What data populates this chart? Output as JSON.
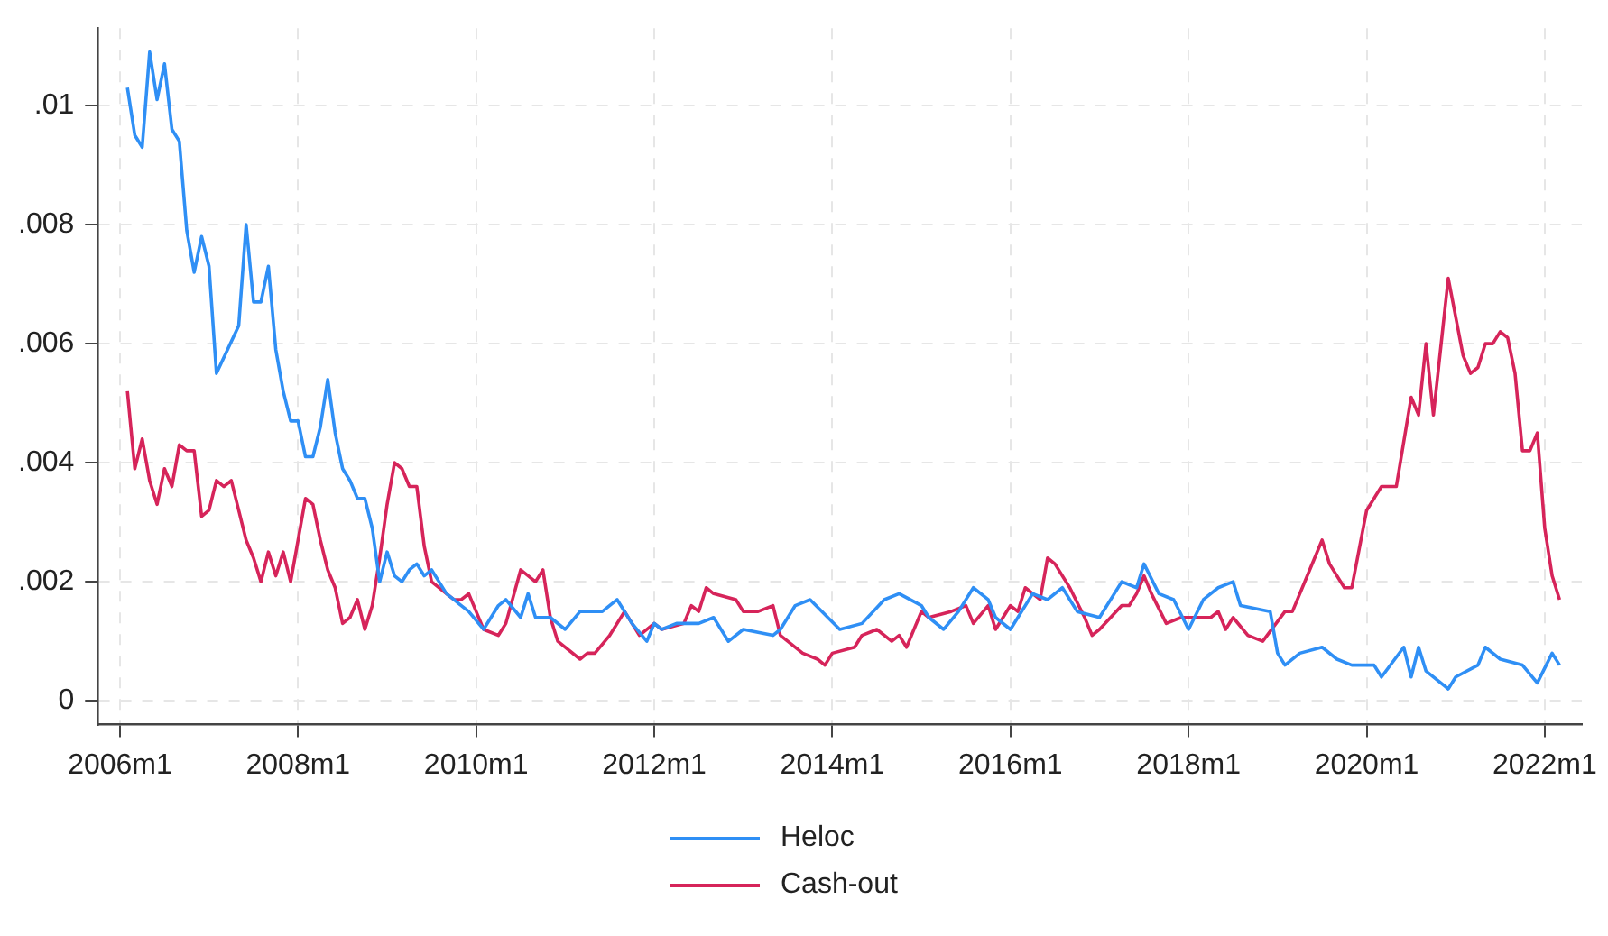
{
  "chart_data": {
    "type": "line",
    "xlim": [
      "2005-10",
      "2022-06"
    ],
    "ylim": [
      -0.0004,
      0.0113
    ],
    "xticks": [
      {
        "value": "2006-01",
        "label": "2006m1"
      },
      {
        "value": "2008-01",
        "label": "2008m1"
      },
      {
        "value": "2010-01",
        "label": "2010m1"
      },
      {
        "value": "2012-01",
        "label": "2012m1"
      },
      {
        "value": "2014-01",
        "label": "2014m1"
      },
      {
        "value": "2016-01",
        "label": "2016m1"
      },
      {
        "value": "2018-01",
        "label": "2018m1"
      },
      {
        "value": "2020-01",
        "label": "2020m1"
      },
      {
        "value": "2022-01",
        "label": "2022m1"
      }
    ],
    "yticks": [
      {
        "value": 0,
        "label": "0"
      },
      {
        "value": 0.002,
        "label": ".002"
      },
      {
        "value": 0.004,
        "label": ".004"
      },
      {
        "value": 0.006,
        "label": ".006"
      },
      {
        "value": 0.008,
        "label": ".008"
      },
      {
        "value": 0.01,
        "label": ".01"
      }
    ],
    "grid": true,
    "legend": "bottom",
    "marker": "none",
    "line_style": "solid",
    "series": [
      {
        "name": "Heloc",
        "color": "#2f8ff5",
        "x": [
          "2006-02",
          "2006-03",
          "2006-04",
          "2006-05",
          "2006-06",
          "2006-07",
          "2006-08",
          "2006-09",
          "2006-10",
          "2006-11",
          "2006-12",
          "2007-01",
          "2007-02",
          "2007-05",
          "2007-06",
          "2007-07",
          "2007-08",
          "2007-09",
          "2007-10",
          "2007-11",
          "2007-12",
          "2008-01",
          "2008-02",
          "2008-03",
          "2008-04",
          "2008-05",
          "2008-06",
          "2008-07",
          "2008-08",
          "2008-09",
          "2008-10",
          "2008-11",
          "2008-12",
          "2009-01",
          "2009-02",
          "2009-03",
          "2009-04",
          "2009-05",
          "2009-06",
          "2009-07",
          "2009-08",
          "2009-09",
          "2009-10",
          "2009-11",
          "2009-12",
          "2010-02",
          "2010-04",
          "2010-05",
          "2010-07",
          "2010-08",
          "2010-09",
          "2010-11",
          "2011-01",
          "2011-03",
          "2011-06",
          "2011-08",
          "2011-10",
          "2011-12",
          "2012-01",
          "2012-02",
          "2012-04",
          "2012-07",
          "2012-09",
          "2012-11",
          "2013-01",
          "2013-05",
          "2013-06",
          "2013-08",
          "2013-10",
          "2014-02",
          "2014-05",
          "2014-08",
          "2014-10",
          "2015-01",
          "2015-02",
          "2015-04",
          "2015-06",
          "2015-08",
          "2015-10",
          "2015-11",
          "2016-01",
          "2016-04",
          "2016-06",
          "2016-08",
          "2016-10",
          "2017-01",
          "2017-04",
          "2017-06",
          "2017-07",
          "2017-09",
          "2017-11",
          "2018-01",
          "2018-03",
          "2018-05",
          "2018-07",
          "2018-08",
          "2018-12",
          "2019-01",
          "2019-02",
          "2019-04",
          "2019-07",
          "2019-09",
          "2019-11",
          "2020-02",
          "2020-03",
          "2020-06",
          "2020-07",
          "2020-08",
          "2020-09",
          "2020-12",
          "2021-01",
          "2021-04",
          "2021-05",
          "2021-07",
          "2021-10",
          "2021-12",
          "2022-02",
          "2022-03"
        ],
        "values": [
          0.0103,
          0.0095,
          0.0093,
          0.0109,
          0.0101,
          0.0107,
          0.0096,
          0.0094,
          0.0079,
          0.0072,
          0.0078,
          0.0073,
          0.0055,
          0.0063,
          0.008,
          0.0067,
          0.0067,
          0.0073,
          0.0059,
          0.0052,
          0.0047,
          0.0047,
          0.0041,
          0.0041,
          0.0046,
          0.0054,
          0.0045,
          0.0039,
          0.0037,
          0.0034,
          0.0034,
          0.0029,
          0.002,
          0.0025,
          0.0021,
          0.002,
          0.0022,
          0.0023,
          0.0021,
          0.0022,
          0.002,
          0.0018,
          0.0017,
          0.0016,
          0.0015,
          0.0012,
          0.0016,
          0.0017,
          0.0014,
          0.0018,
          0.0014,
          0.0014,
          0.0012,
          0.0015,
          0.0015,
          0.0017,
          0.0013,
          0.001,
          0.0013,
          0.0012,
          0.0013,
          0.0013,
          0.0014,
          0.001,
          0.0012,
          0.0011,
          0.0012,
          0.0016,
          0.0017,
          0.0012,
          0.0013,
          0.0017,
          0.0018,
          0.0016,
          0.0014,
          0.0012,
          0.0015,
          0.0019,
          0.0017,
          0.0014,
          0.0012,
          0.0018,
          0.0017,
          0.0019,
          0.0015,
          0.0014,
          0.002,
          0.0019,
          0.0023,
          0.0018,
          0.0017,
          0.0012,
          0.0017,
          0.0019,
          0.002,
          0.0016,
          0.0015,
          0.0008,
          0.0006,
          0.0008,
          0.0009,
          0.0007,
          0.0006,
          0.0006,
          0.0004,
          0.0009,
          0.0004,
          0.0009,
          0.0005,
          0.0002,
          0.0004,
          0.0006,
          0.0009,
          0.0007,
          0.0006,
          0.0003,
          0.0008,
          0.0006
        ]
      },
      {
        "name": "Cash-out",
        "color": "#d6245a",
        "x": [
          "2006-02",
          "2006-03",
          "2006-04",
          "2006-05",
          "2006-06",
          "2006-07",
          "2006-08",
          "2006-09",
          "2006-10",
          "2006-11",
          "2006-12",
          "2007-01",
          "2007-02",
          "2007-03",
          "2007-04",
          "2007-05",
          "2007-06",
          "2007-07",
          "2007-08",
          "2007-09",
          "2007-10",
          "2007-11",
          "2007-12",
          "2008-01",
          "2008-02",
          "2008-03",
          "2008-04",
          "2008-05",
          "2008-06",
          "2008-07",
          "2008-08",
          "2008-09",
          "2008-10",
          "2008-11",
          "2008-12",
          "2009-01",
          "2009-02",
          "2009-03",
          "2009-04",
          "2009-05",
          "2009-06",
          "2009-07",
          "2009-09",
          "2009-10",
          "2009-11",
          "2009-12",
          "2010-01",
          "2010-02",
          "2010-04",
          "2010-05",
          "2010-07",
          "2010-09",
          "2010-10",
          "2010-11",
          "2010-12",
          "2011-03",
          "2011-04",
          "2011-05",
          "2011-07",
          "2011-09",
          "2011-11",
          "2012-01",
          "2012-02",
          "2012-05",
          "2012-06",
          "2012-07",
          "2012-08",
          "2012-09",
          "2012-12",
          "2013-01",
          "2013-03",
          "2013-05",
          "2013-06",
          "2013-09",
          "2013-11",
          "2013-12",
          "2014-01",
          "2014-04",
          "2014-05",
          "2014-07",
          "2014-09",
          "2014-10",
          "2014-11",
          "2015-01",
          "2015-02",
          "2015-05",
          "2015-07",
          "2015-08",
          "2015-10",
          "2015-11",
          "2016-01",
          "2016-02",
          "2016-03",
          "2016-05",
          "2016-06",
          "2016-07",
          "2016-09",
          "2016-11",
          "2016-12",
          "2017-01",
          "2017-04",
          "2017-05",
          "2017-06",
          "2017-07",
          "2017-08",
          "2017-10",
          "2017-12",
          "2018-04",
          "2018-05",
          "2018-06",
          "2018-07",
          "2018-09",
          "2018-11",
          "2019-02",
          "2019-03",
          "2019-05",
          "2019-07",
          "2019-08",
          "2019-10",
          "2019-11",
          "2020-01",
          "2020-03",
          "2020-05",
          "2020-07",
          "2020-08",
          "2020-09",
          "2020-10",
          "2020-12",
          "2021-02",
          "2021-03",
          "2021-04",
          "2021-05",
          "2021-06",
          "2021-07",
          "2021-08",
          "2021-09",
          "2021-10",
          "2021-11",
          "2021-12",
          "2022-01",
          "2022-02",
          "2022-03"
        ],
        "values": [
          0.0052,
          0.0039,
          0.0044,
          0.0037,
          0.0033,
          0.0039,
          0.0036,
          0.0043,
          0.0042,
          0.0042,
          0.0031,
          0.0032,
          0.0037,
          0.0036,
          0.0037,
          0.0032,
          0.0027,
          0.0024,
          0.002,
          0.0025,
          0.0021,
          0.0025,
          0.002,
          0.0027,
          0.0034,
          0.0033,
          0.0027,
          0.0022,
          0.0019,
          0.0013,
          0.0014,
          0.0017,
          0.0012,
          0.0016,
          0.0024,
          0.0033,
          0.004,
          0.0039,
          0.0036,
          0.0036,
          0.0026,
          0.002,
          0.0018,
          0.0017,
          0.0017,
          0.0018,
          0.0015,
          0.0012,
          0.0011,
          0.0013,
          0.0022,
          0.002,
          0.0022,
          0.0014,
          0.001,
          0.0007,
          0.0008,
          0.0008,
          0.0011,
          0.0015,
          0.0011,
          0.0013,
          0.0012,
          0.0013,
          0.0016,
          0.0015,
          0.0019,
          0.0018,
          0.0017,
          0.0015,
          0.0015,
          0.0016,
          0.0011,
          0.0008,
          0.0007,
          0.0006,
          0.0008,
          0.0009,
          0.0011,
          0.0012,
          0.001,
          0.0011,
          0.0009,
          0.0015,
          0.0014,
          0.0015,
          0.0016,
          0.0013,
          0.0016,
          0.0012,
          0.0016,
          0.0015,
          0.0019,
          0.0017,
          0.0024,
          0.0023,
          0.0019,
          0.0014,
          0.0011,
          0.0012,
          0.0016,
          0.0016,
          0.0018,
          0.0021,
          0.0018,
          0.0013,
          0.0014,
          0.0014,
          0.0015,
          0.0012,
          0.0014,
          0.0011,
          0.001,
          0.0015,
          0.0015,
          0.0021,
          0.0027,
          0.0023,
          0.0019,
          0.0019,
          0.0032,
          0.0036,
          0.0036,
          0.0051,
          0.0048,
          0.006,
          0.0048,
          0.0071,
          0.0058,
          0.0055,
          0.0056,
          0.006,
          0.006,
          0.0062,
          0.0061,
          0.0055,
          0.0042,
          0.0042,
          0.0045,
          0.0029,
          0.0021,
          0.0017
        ]
      }
    ]
  }
}
